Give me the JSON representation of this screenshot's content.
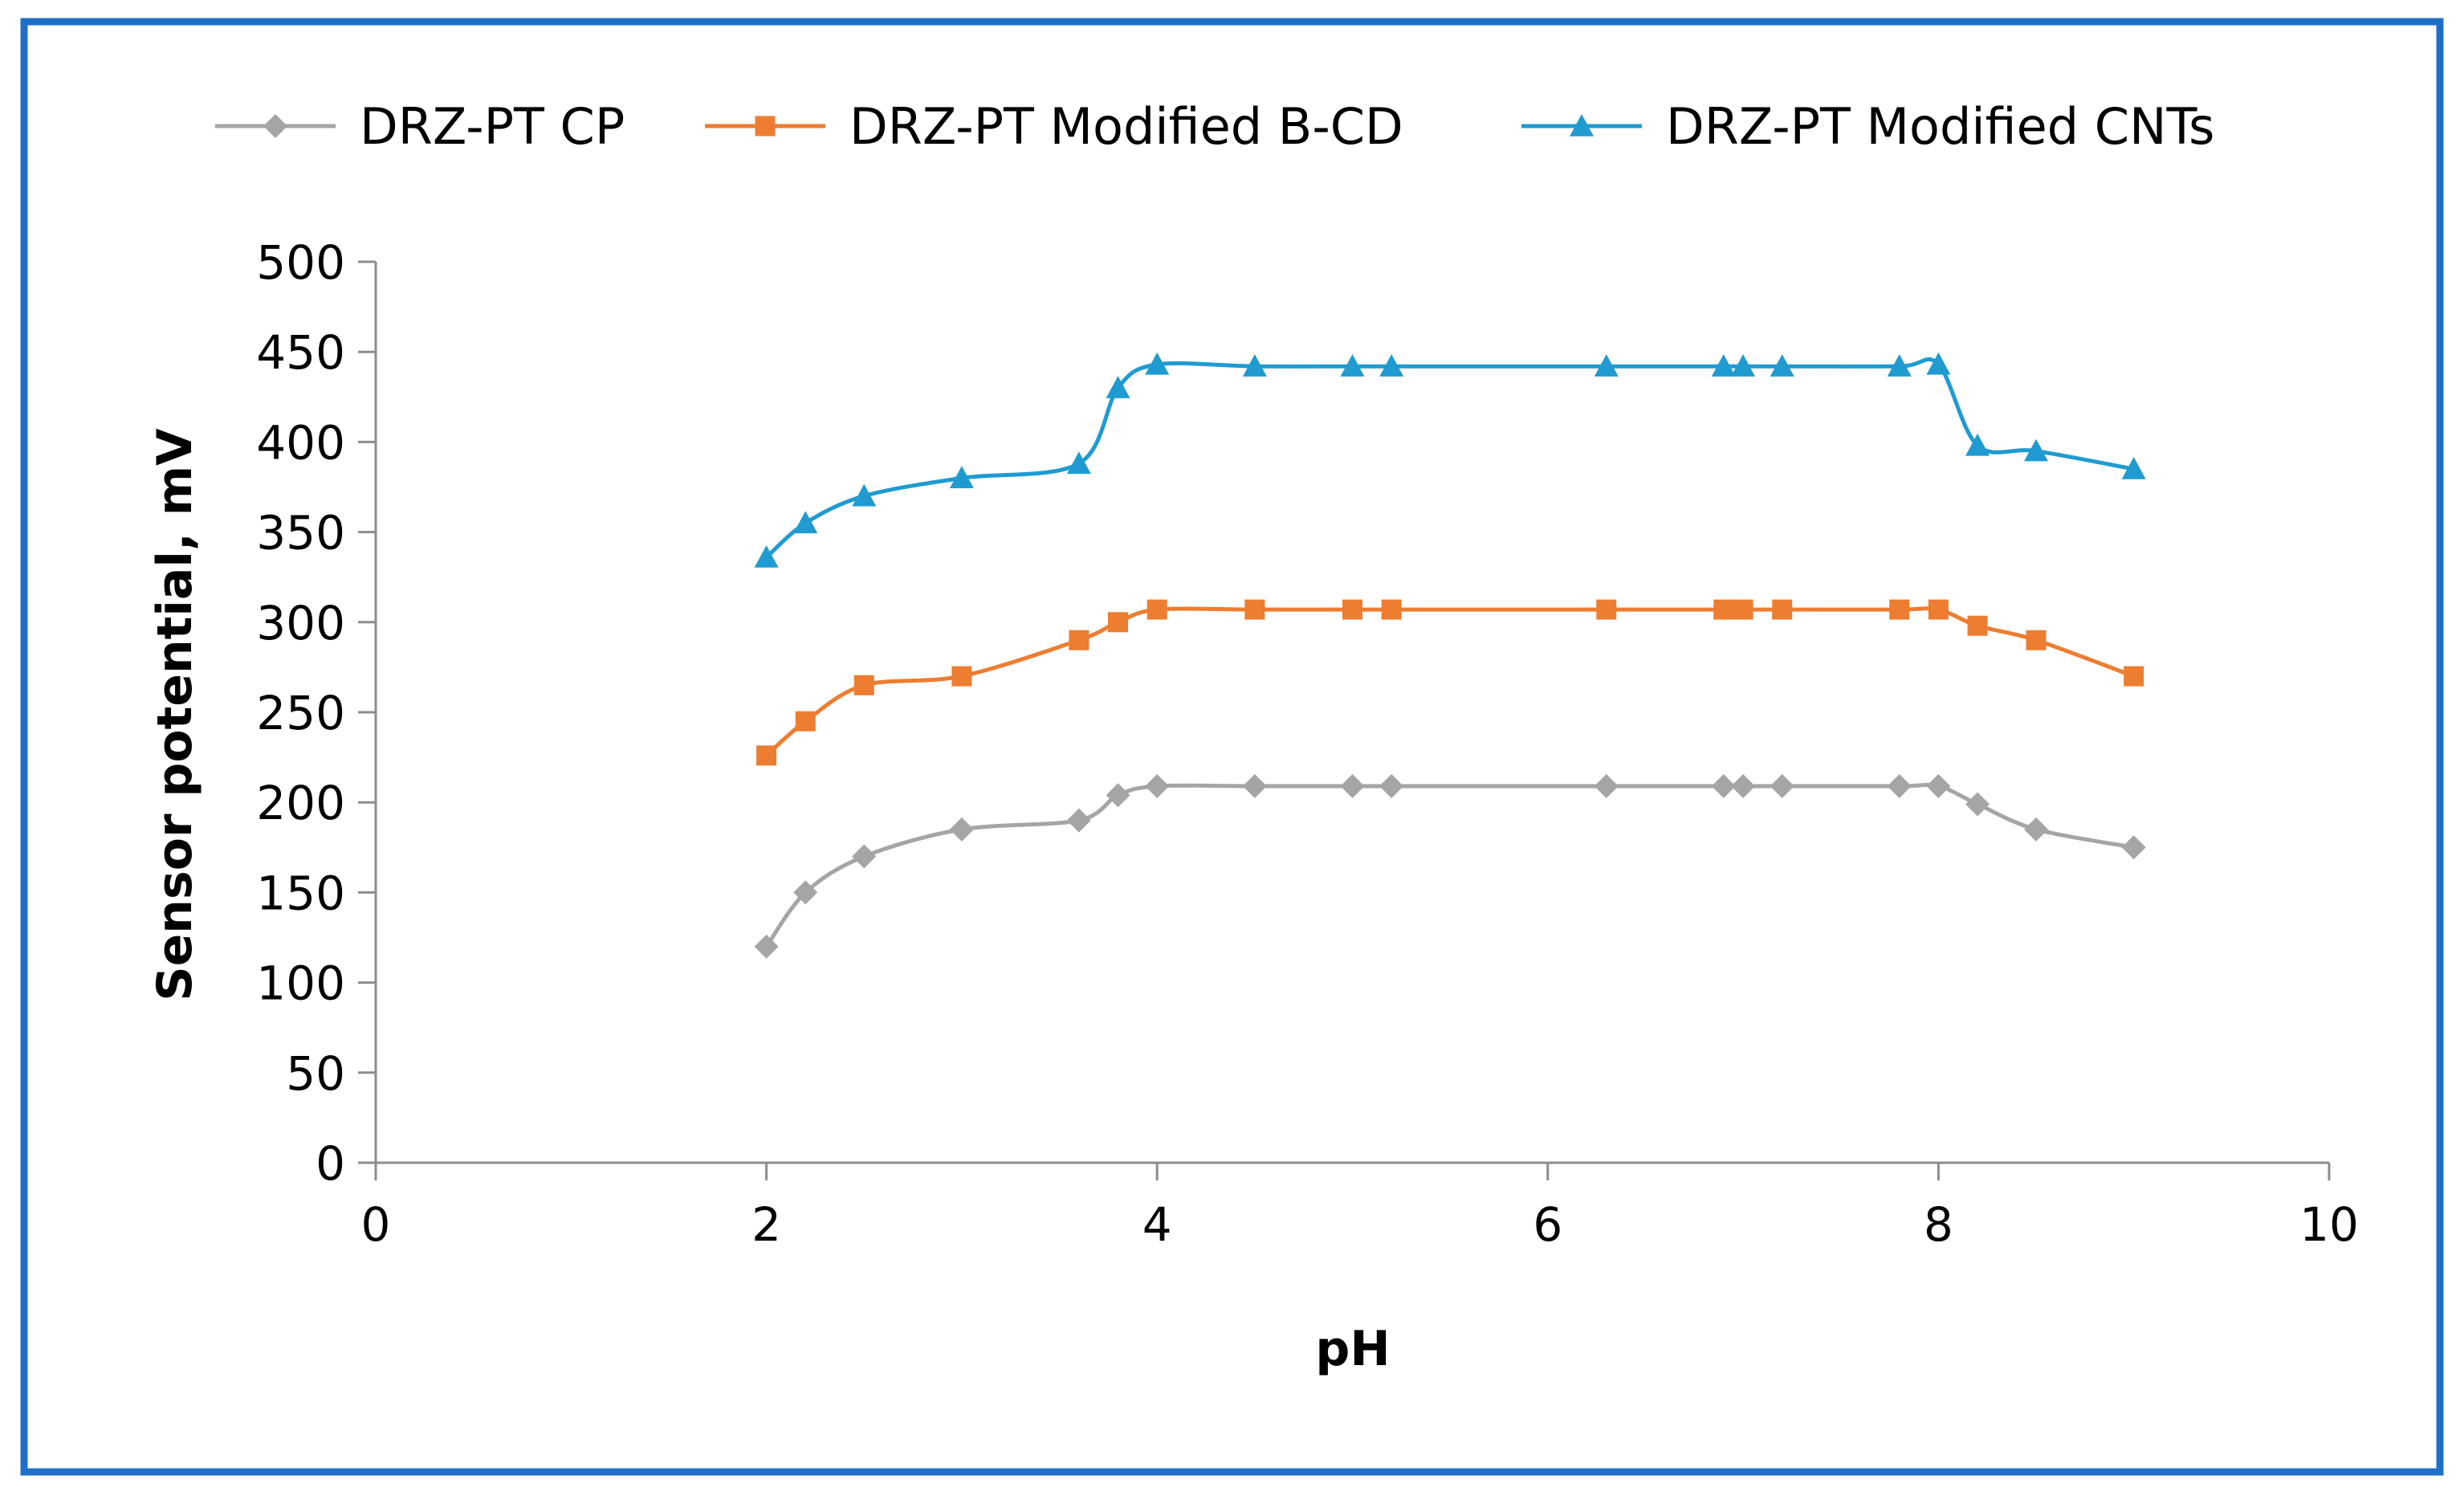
{
  "chart_data": {
    "type": "line",
    "title": "",
    "xlabel": "pH",
    "ylabel": "Sensor potential, mV",
    "xlim": [
      0,
      10
    ],
    "ylim": [
      0,
      500
    ],
    "xticks": [
      0,
      2,
      4,
      6,
      8,
      10
    ],
    "yticks": [
      0,
      50,
      100,
      150,
      200,
      250,
      300,
      350,
      400,
      450,
      500
    ],
    "grid": false,
    "legend_position": "top",
    "x": [
      2,
      2.2,
      2.5,
      3,
      3.6,
      3.8,
      4,
      4.5,
      5,
      5.2,
      6.3,
      6.9,
      7,
      7.2,
      7.8,
      8,
      8.2,
      8.5,
      9
    ],
    "series": [
      {
        "name": "DRZ-PT CP",
        "color": "#A5A5A5",
        "marker": "diamond",
        "values": [
          120,
          150,
          170,
          185,
          190,
          204,
          209,
          209,
          209,
          209,
          209,
          209,
          209,
          209,
          209,
          209,
          199,
          185,
          175
        ]
      },
      {
        "name": "DRZ-PT Modified B-CD",
        "color": "#ED7D31",
        "marker": "square",
        "values": [
          226,
          245,
          265,
          270,
          290,
          300,
          307,
          307,
          307,
          307,
          307,
          307,
          307,
          307,
          307,
          307,
          298,
          290,
          270
        ]
      },
      {
        "name": "DRZ-PT Modified CNTs",
        "color": "#1F9BD1",
        "marker": "triangle",
        "values": [
          336,
          355,
          370,
          380,
          388,
          430,
          443,
          442,
          442,
          442,
          442,
          442,
          442,
          442,
          442,
          443,
          398,
          395,
          385
        ]
      }
    ]
  },
  "colors": {
    "frame_border": "#1F6FC8",
    "axis": "#8C8C8C",
    "text": "#000000"
  }
}
